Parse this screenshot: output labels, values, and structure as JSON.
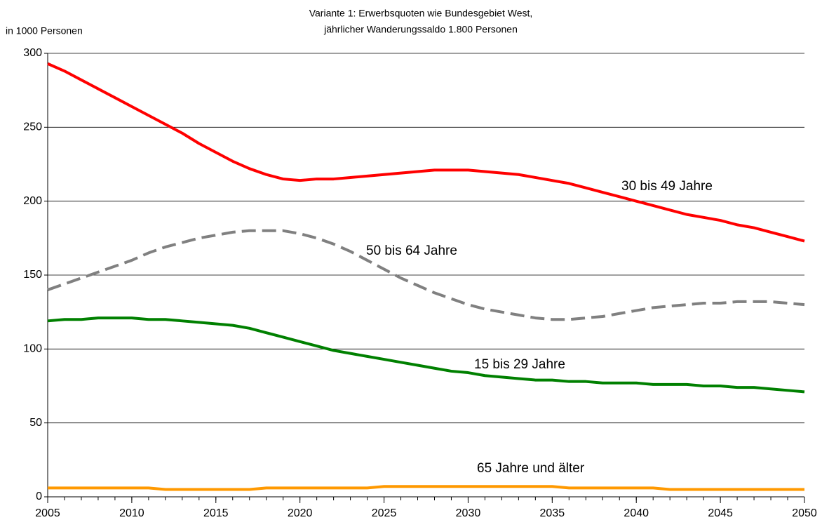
{
  "chart_data": {
    "type": "line",
    "title": [
      "Variante 1: Erwerbsquoten wie Bundesgebiet West,",
      "jährlicher Wanderungssaldo 1.800 Personen"
    ],
    "y_label": "in 1000 Personen",
    "x": [
      2005,
      2006,
      2007,
      2008,
      2009,
      2010,
      2011,
      2012,
      2013,
      2014,
      2015,
      2016,
      2017,
      2018,
      2019,
      2020,
      2021,
      2022,
      2023,
      2024,
      2025,
      2026,
      2027,
      2028,
      2029,
      2030,
      2031,
      2032,
      2033,
      2034,
      2035,
      2036,
      2037,
      2038,
      2039,
      2040,
      2041,
      2042,
      2043,
      2044,
      2045,
      2046,
      2047,
      2048,
      2049,
      2050
    ],
    "series": [
      {
        "name": "30 bis 49 Jahre",
        "color": "#ff0000",
        "dashed": false,
        "values": [
          293,
          288,
          282,
          276,
          270,
          264,
          258,
          252,
          246,
          239,
          233,
          227,
          222,
          218,
          215,
          214,
          215,
          215,
          216,
          217,
          218,
          219,
          220,
          221,
          221,
          221,
          220,
          219,
          218,
          216,
          214,
          212,
          209,
          206,
          203,
          200,
          197,
          194,
          191,
          189,
          187,
          184,
          182,
          179,
          176,
          173
        ]
      },
      {
        "name": "50 bis 64 Jahre",
        "color": "#808080",
        "dashed": true,
        "values": [
          140,
          144,
          148,
          152,
          156,
          160,
          165,
          169,
          172,
          175,
          177,
          179,
          180,
          180,
          180,
          178,
          175,
          171,
          166,
          160,
          154,
          148,
          143,
          138,
          134,
          130,
          127,
          125,
          123,
          121,
          120,
          120,
          121,
          122,
          124,
          126,
          128,
          129,
          130,
          131,
          131,
          132,
          132,
          132,
          131,
          130
        ]
      },
      {
        "name": "15 bis 29 Jahre",
        "color": "#008000",
        "dashed": false,
        "values": [
          119,
          120,
          120,
          121,
          121,
          121,
          120,
          120,
          119,
          118,
          117,
          116,
          114,
          111,
          108,
          105,
          102,
          99,
          97,
          95,
          93,
          91,
          89,
          87,
          85,
          84,
          82,
          81,
          80,
          79,
          79,
          78,
          78,
          77,
          77,
          77,
          76,
          76,
          76,
          75,
          75,
          74,
          74,
          73,
          72,
          71
        ]
      },
      {
        "name": "65 Jahre und älter",
        "color": "#ff9900",
        "dashed": false,
        "values": [
          6,
          6,
          6,
          6,
          6,
          6,
          6,
          5,
          5,
          5,
          5,
          5,
          5,
          6,
          6,
          6,
          6,
          6,
          6,
          6,
          7,
          7,
          7,
          7,
          7,
          7,
          7,
          7,
          7,
          7,
          7,
          6,
          6,
          6,
          6,
          6,
          6,
          5,
          5,
          5,
          5,
          5,
          5,
          5,
          5,
          5
        ]
      }
    ],
    "xlim": [
      2005,
      2050
    ],
    "xticks": [
      2005,
      2010,
      2015,
      2020,
      2025,
      2030,
      2035,
      2040,
      2045,
      2050
    ],
    "ylim": [
      0,
      300
    ],
    "yticks": [
      0,
      50,
      100,
      150,
      200,
      250,
      300
    ],
    "grid": true
  }
}
